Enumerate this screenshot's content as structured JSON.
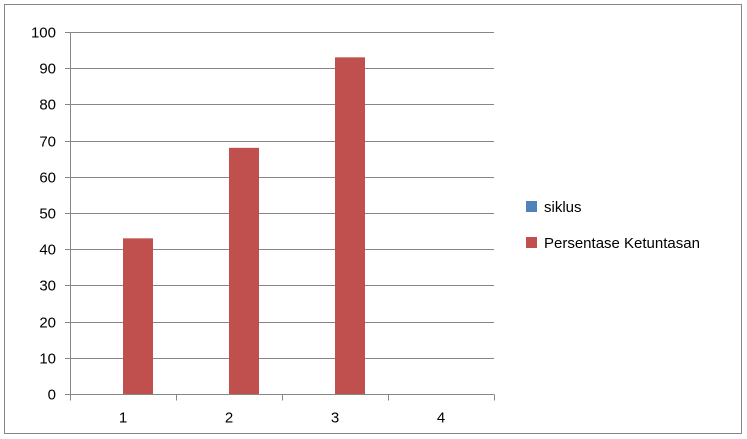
{
  "chart_data": {
    "type": "bar",
    "categories": [
      "1",
      "2",
      "3",
      "4"
    ],
    "series": [
      {
        "name": "siklus",
        "values": [
          null,
          null,
          null,
          null
        ],
        "color": "#4F81BD"
      },
      {
        "name": "Persentase Ketuntasan",
        "values": [
          43,
          68,
          93,
          null
        ],
        "color": "#C0504D"
      }
    ],
    "title": "",
    "xlabel": "",
    "ylabel": "",
    "ylim": [
      0,
      100
    ],
    "y_ticks": [
      "0",
      "10",
      "20",
      "30",
      "40",
      "50",
      "60",
      "70",
      "80",
      "90",
      "100"
    ],
    "grid": true,
    "legend_position": "right"
  }
}
